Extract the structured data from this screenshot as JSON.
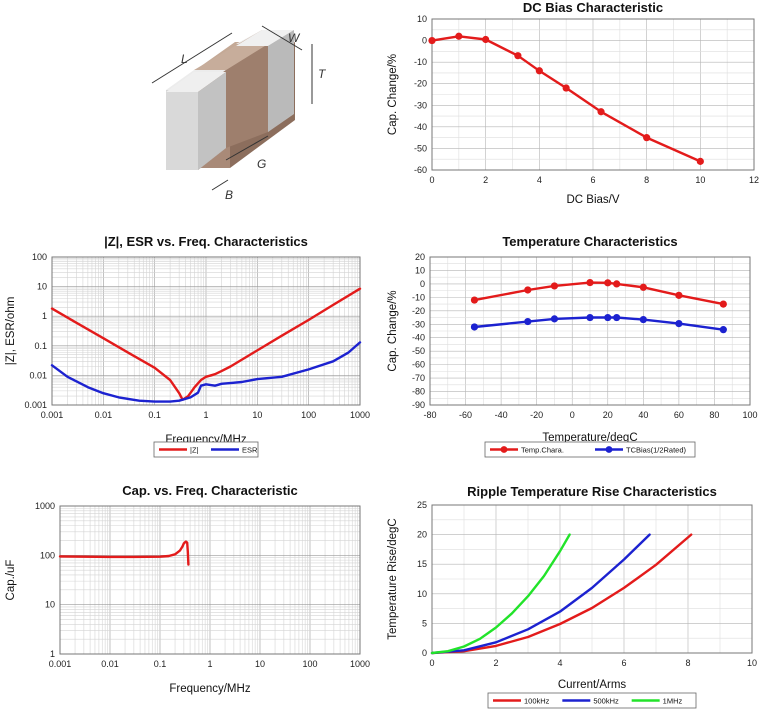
{
  "chart_data": [
    {
      "type": "line",
      "title": "DC Bias Characteristic",
      "xlabel": "DC Bias/V",
      "ylabel": "Cap. Change/%",
      "xlim": [
        0,
        12
      ],
      "ylim": [
        -60,
        10
      ],
      "x_ticks": [
        "0",
        "2",
        "4",
        "6",
        "8",
        "10",
        "12"
      ],
      "y_ticks": [
        "10",
        "0",
        "-10",
        "-20",
        "-30",
        "-40",
        "-50",
        "-60"
      ],
      "grid": true,
      "series": [
        {
          "color": "#e31b1b",
          "markers": true,
          "x": [
            0,
            1,
            2,
            3.2,
            4,
            5,
            6.3,
            8,
            10
          ],
          "y": [
            0,
            2,
            0.5,
            -7,
            -14,
            -22,
            -33,
            -45,
            -56
          ]
        }
      ]
    },
    {
      "type": "line",
      "title": "|Z|, ESR vs. Freq. Characteristics",
      "xlabel": "Frequency/MHz",
      "ylabel": "|Z|, ESR/ohm",
      "xscale": "log",
      "yscale": "log",
      "xlim": [
        0.001,
        1000
      ],
      "ylim": [
        0.001,
        100
      ],
      "x_ticks": [
        "0.001",
        "0.01",
        "0.1",
        "1",
        "10",
        "100",
        "1000"
      ],
      "y_ticks": [
        "100",
        "10",
        "1",
        "0.1",
        "0.01",
        "0.001"
      ],
      "grid": true,
      "legend": "bottom",
      "series": [
        {
          "name": "|Z|",
          "color": "#e31b1b",
          "x": [
            0.001,
            0.003,
            0.01,
            0.03,
            0.1,
            0.2,
            0.3,
            0.35,
            0.45,
            0.6,
            0.8,
            1,
            1.5,
            2,
            3,
            10,
            30,
            100,
            300,
            1000
          ],
          "y": [
            1.8,
            0.6,
            0.18,
            0.06,
            0.018,
            0.007,
            0.0025,
            0.0015,
            0.002,
            0.004,
            0.007,
            0.009,
            0.011,
            0.014,
            0.02,
            0.07,
            0.22,
            0.75,
            2.4,
            8.5
          ]
        },
        {
          "name": "ESR",
          "color": "#1c22d0",
          "x": [
            0.001,
            0.002,
            0.005,
            0.01,
            0.02,
            0.05,
            0.1,
            0.2,
            0.3,
            0.5,
            0.7,
            0.8,
            1,
            1.5,
            2,
            5,
            10,
            30,
            100,
            300,
            600,
            1000
          ],
          "y": [
            0.022,
            0.009,
            0.004,
            0.0025,
            0.0018,
            0.0014,
            0.0013,
            0.0013,
            0.0014,
            0.0018,
            0.0026,
            0.0045,
            0.005,
            0.0045,
            0.0052,
            0.006,
            0.0075,
            0.009,
            0.016,
            0.03,
            0.06,
            0.13
          ]
        }
      ]
    },
    {
      "type": "line",
      "title": "Temperature Characteristics",
      "xlabel": "Temperature/degC",
      "ylabel": "Cap. Change/%",
      "xlim": [
        -80,
        100
      ],
      "ylim": [
        -90,
        20
      ],
      "x_ticks": [
        "-80",
        "-60",
        "-40",
        "-20",
        "0",
        "20",
        "40",
        "60",
        "80",
        "100"
      ],
      "y_ticks": [
        "20",
        "10",
        "0",
        "-10",
        "-20",
        "-30",
        "-40",
        "-50",
        "-60",
        "-70",
        "-80",
        "-90"
      ],
      "grid": true,
      "legend": "bottom",
      "series": [
        {
          "name": "Temp.Chara.",
          "color": "#e31b1b",
          "markers": true,
          "x": [
            -55,
            -25,
            -10,
            10,
            20,
            25,
            40,
            60,
            85
          ],
          "y": [
            -12,
            -4.5,
            -1.5,
            1,
            0.8,
            0,
            -2.5,
            -8.5,
            -15
          ]
        },
        {
          "name": "TCBias(1/2Rated)",
          "color": "#1c22d0",
          "markers": true,
          "x": [
            -55,
            -25,
            -10,
            10,
            20,
            25,
            40,
            60,
            85
          ],
          "y": [
            -32,
            -28,
            -26,
            -25,
            -25,
            -25,
            -26.5,
            -29.5,
            -34
          ]
        }
      ]
    },
    {
      "type": "line",
      "title": "Cap. vs. Freq. Characteristic",
      "xlabel": "Frequency/MHz",
      "ylabel": "Cap./uF",
      "xscale": "log",
      "yscale": "log",
      "xlim": [
        0.001,
        1000
      ],
      "ylim": [
        1,
        1000
      ],
      "x_ticks": [
        "0.001",
        "0.01",
        "0.1",
        "1",
        "10",
        "100",
        "1000"
      ],
      "y_ticks": [
        "1000",
        "100",
        "10",
        "1"
      ],
      "grid": true,
      "series": [
        {
          "color": "#e31b1b",
          "x": [
            0.001,
            0.003,
            0.01,
            0.03,
            0.1,
            0.15,
            0.2,
            0.25,
            0.28,
            0.3,
            0.33,
            0.35,
            0.36,
            0.37
          ],
          "y": [
            95,
            94,
            93,
            93,
            94,
            97,
            105,
            125,
            150,
            175,
            190,
            180,
            120,
            65
          ]
        }
      ]
    },
    {
      "type": "line",
      "title": "Ripple Temperature Rise Characteristics",
      "xlabel": "Current/Arms",
      "ylabel": "Temperature Rise/degC",
      "xlim": [
        0,
        10
      ],
      "ylim": [
        0,
        25
      ],
      "x_ticks": [
        "0",
        "2",
        "4",
        "6",
        "8",
        "10"
      ],
      "y_ticks": [
        "25",
        "20",
        "15",
        "10",
        "5",
        "0"
      ],
      "grid": true,
      "legend": "bottom",
      "series": [
        {
          "name": "100kHz",
          "color": "#e31b1b",
          "x": [
            0,
            1,
            2,
            3,
            4,
            5,
            6,
            7,
            8.1
          ],
          "y": [
            0,
            0.3,
            1.2,
            2.7,
            4.9,
            7.6,
            11,
            14.9,
            20
          ]
        },
        {
          "name": "500kHz",
          "color": "#1c22d0",
          "x": [
            0,
            1,
            2,
            3,
            4,
            5,
            6,
            6.8
          ],
          "y": [
            0,
            0.45,
            1.8,
            4,
            7,
            11,
            15.8,
            20
          ]
        },
        {
          "name": "1MHz",
          "color": "#22e32a",
          "x": [
            0,
            0.5,
            1,
            1.5,
            2,
            2.5,
            3,
            3.5,
            4,
            4.3
          ],
          "y": [
            0,
            0.3,
            1.1,
            2.4,
            4.3,
            6.7,
            9.6,
            13,
            17.2,
            20
          ]
        }
      ]
    }
  ],
  "component_image": {
    "dimension_labels": [
      "L",
      "W",
      "T",
      "G",
      "B"
    ],
    "colors": {
      "body": "#a98a78",
      "terminal": "#c9c9c9"
    }
  }
}
